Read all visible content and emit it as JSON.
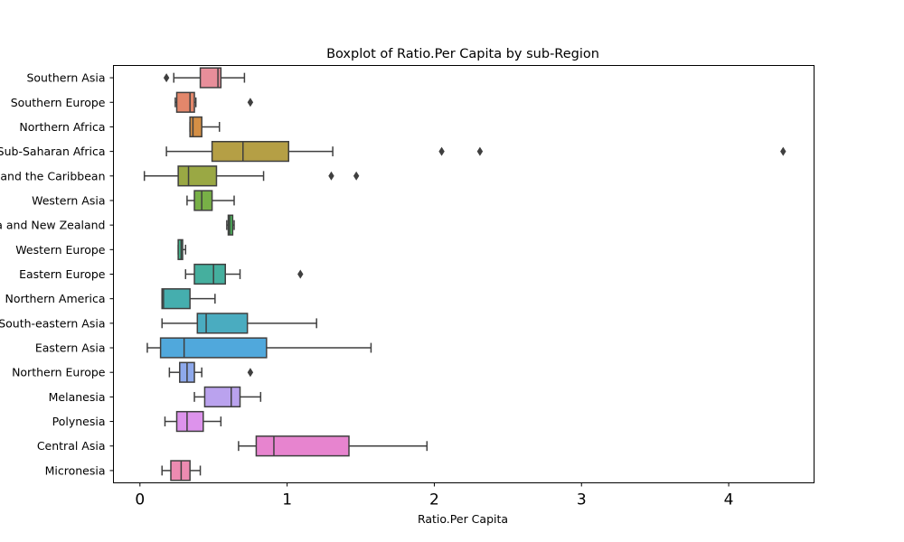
{
  "chart_data": {
    "type": "boxplot",
    "title": "Boxplot of Ratio.Per Capita by sub-Region",
    "xlabel": "Ratio.Per Capita",
    "ylabel": "",
    "xlim": [
      -0.18,
      4.58
    ],
    "xticks": [
      0,
      1,
      2,
      3,
      4
    ],
    "grid": false,
    "categories": [
      "Southern Asia",
      "Southern Europe",
      "Northern Africa",
      "Sub-Saharan Africa",
      "Latin America and the Caribbean",
      "Western Asia",
      "Australia and New Zealand",
      "Western Europe",
      "Eastern Europe",
      "Northern America",
      "South-eastern Asia",
      "Eastern Asia",
      "Northern Europe",
      "Melanesia",
      "Polynesia",
      "Central Asia",
      "Micronesia"
    ],
    "boxes": [
      {
        "min": 0.23,
        "q1": 0.41,
        "median": 0.53,
        "q3": 0.55,
        "max": 0.71,
        "outliers": [
          0.18
        ],
        "color": "#e88e9a"
      },
      {
        "min": 0.24,
        "q1": 0.25,
        "median": 0.34,
        "q3": 0.37,
        "max": 0.38,
        "outliers": [
          0.75
        ],
        "color": "#e3876b"
      },
      {
        "min": 0.34,
        "q1": 0.34,
        "median": 0.36,
        "q3": 0.42,
        "max": 0.54,
        "outliers": [],
        "color": "#d58f45"
      },
      {
        "min": 0.18,
        "q1": 0.49,
        "median": 0.7,
        "q3": 1.01,
        "max": 1.31,
        "outliers": [
          2.05,
          2.31,
          4.37
        ],
        "color": "#b59f45"
      },
      {
        "min": 0.03,
        "q1": 0.26,
        "median": 0.33,
        "q3": 0.52,
        "max": 0.84,
        "outliers": [
          1.3,
          1.47
        ],
        "color": "#9aa844"
      },
      {
        "min": 0.32,
        "q1": 0.37,
        "median": 0.42,
        "q3": 0.49,
        "max": 0.64,
        "outliers": [],
        "color": "#78b047"
      },
      {
        "min": 0.59,
        "q1": 0.6,
        "median": 0.61,
        "q3": 0.63,
        "max": 0.64,
        "outliers": [],
        "color": "#4cb65a"
      },
      {
        "min": 0.26,
        "q1": 0.26,
        "median": 0.28,
        "q3": 0.29,
        "max": 0.31,
        "outliers": [],
        "color": "#45b38c"
      },
      {
        "min": 0.31,
        "q1": 0.37,
        "median": 0.5,
        "q3": 0.58,
        "max": 0.68,
        "outliers": [
          1.09
        ],
        "color": "#45af9e"
      },
      {
        "min": 0.15,
        "q1": 0.15,
        "median": 0.16,
        "q3": 0.34,
        "max": 0.51,
        "outliers": [],
        "color": "#45aeae"
      },
      {
        "min": 0.15,
        "q1": 0.39,
        "median": 0.45,
        "q3": 0.73,
        "max": 1.2,
        "outliers": [],
        "color": "#4aacc0"
      },
      {
        "min": 0.05,
        "q1": 0.14,
        "median": 0.3,
        "q3": 0.86,
        "max": 1.57,
        "outliers": [],
        "color": "#50a8dc"
      },
      {
        "min": 0.2,
        "q1": 0.27,
        "median": 0.32,
        "q3": 0.37,
        "max": 0.42,
        "outliers": [
          0.75
        ],
        "color": "#8ea9ec"
      },
      {
        "min": 0.37,
        "q1": 0.44,
        "median": 0.62,
        "q3": 0.68,
        "max": 0.82,
        "outliers": [],
        "color": "#baa2ee"
      },
      {
        "min": 0.17,
        "q1": 0.25,
        "median": 0.32,
        "q3": 0.43,
        "max": 0.55,
        "outliers": [],
        "color": "#dd93ec"
      },
      {
        "min": 0.67,
        "q1": 0.79,
        "median": 0.91,
        "q3": 1.42,
        "max": 1.95,
        "outliers": [],
        "color": "#e784cf"
      },
      {
        "min": 0.15,
        "q1": 0.21,
        "median": 0.28,
        "q3": 0.34,
        "max": 0.41,
        "outliers": [],
        "color": "#ec8bb1"
      }
    ]
  }
}
